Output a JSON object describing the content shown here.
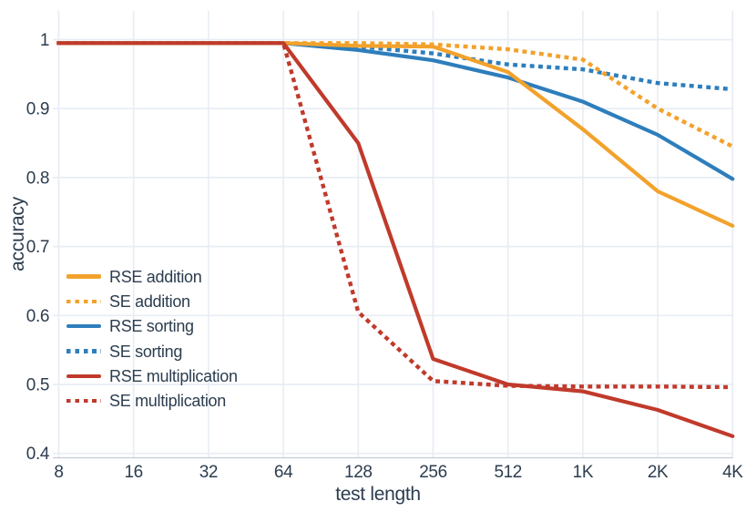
{
  "chart_data": {
    "type": "line",
    "title": "",
    "xlabel": "test length",
    "ylabel": "accuracy",
    "x_scale": "log2",
    "x": [
      8,
      16,
      32,
      64,
      128,
      256,
      512,
      1024,
      2048,
      4096
    ],
    "x_tick_labels": [
      "8",
      "16",
      "32",
      "64",
      "128",
      "256",
      "512",
      "1K",
      "2K",
      "4K"
    ],
    "y_ticks": [
      1,
      0.9,
      0.8,
      0.7,
      0.6,
      0.5,
      0.4
    ],
    "y_tick_labels": [
      "1",
      "0.9",
      "0.8",
      "0.7",
      "0.6",
      "0.5",
      "0.4"
    ],
    "ylim": [
      0.4,
      1.0
    ],
    "grid": true,
    "legend_position": "inside-left",
    "series": [
      {
        "name": "RSE addition",
        "style": "solid",
        "color": "#F2A22C",
        "values": [
          0.995,
          0.995,
          0.995,
          0.995,
          0.991,
          0.99,
          0.953,
          0.87,
          0.78,
          0.73
        ]
      },
      {
        "name": "SE addition",
        "style": "dotted",
        "color": "#F2A22C",
        "values": [
          0.995,
          0.995,
          0.995,
          0.995,
          0.995,
          0.993,
          0.986,
          0.971,
          0.9,
          0.845
        ]
      },
      {
        "name": "RSE sorting",
        "style": "solid",
        "color": "#2E7EBC",
        "values": [
          0.995,
          0.995,
          0.995,
          0.995,
          0.985,
          0.97,
          0.945,
          0.91,
          0.862,
          0.798
        ]
      },
      {
        "name": "SE sorting",
        "style": "dotted",
        "color": "#2E7EBC",
        "values": [
          0.995,
          0.995,
          0.995,
          0.995,
          0.99,
          0.98,
          0.964,
          0.957,
          0.937,
          0.928
        ]
      },
      {
        "name": "RSE multiplication",
        "style": "solid",
        "color": "#C03A2B",
        "values": [
          0.995,
          0.995,
          0.995,
          0.995,
          0.85,
          0.537,
          0.5,
          0.49,
          0.463,
          0.425
        ]
      },
      {
        "name": "SE multiplication",
        "style": "dotted",
        "color": "#C03A2B",
        "values": [
          0.995,
          0.995,
          0.995,
          0.995,
          0.605,
          0.505,
          0.498,
          0.497,
          0.497,
          0.496
        ]
      }
    ]
  },
  "style": {
    "text_color": "#2C3D4F",
    "grid_color": "#E8EDF4",
    "axis_line_color": "#C6CCD5",
    "background": "#FFFFFF"
  }
}
